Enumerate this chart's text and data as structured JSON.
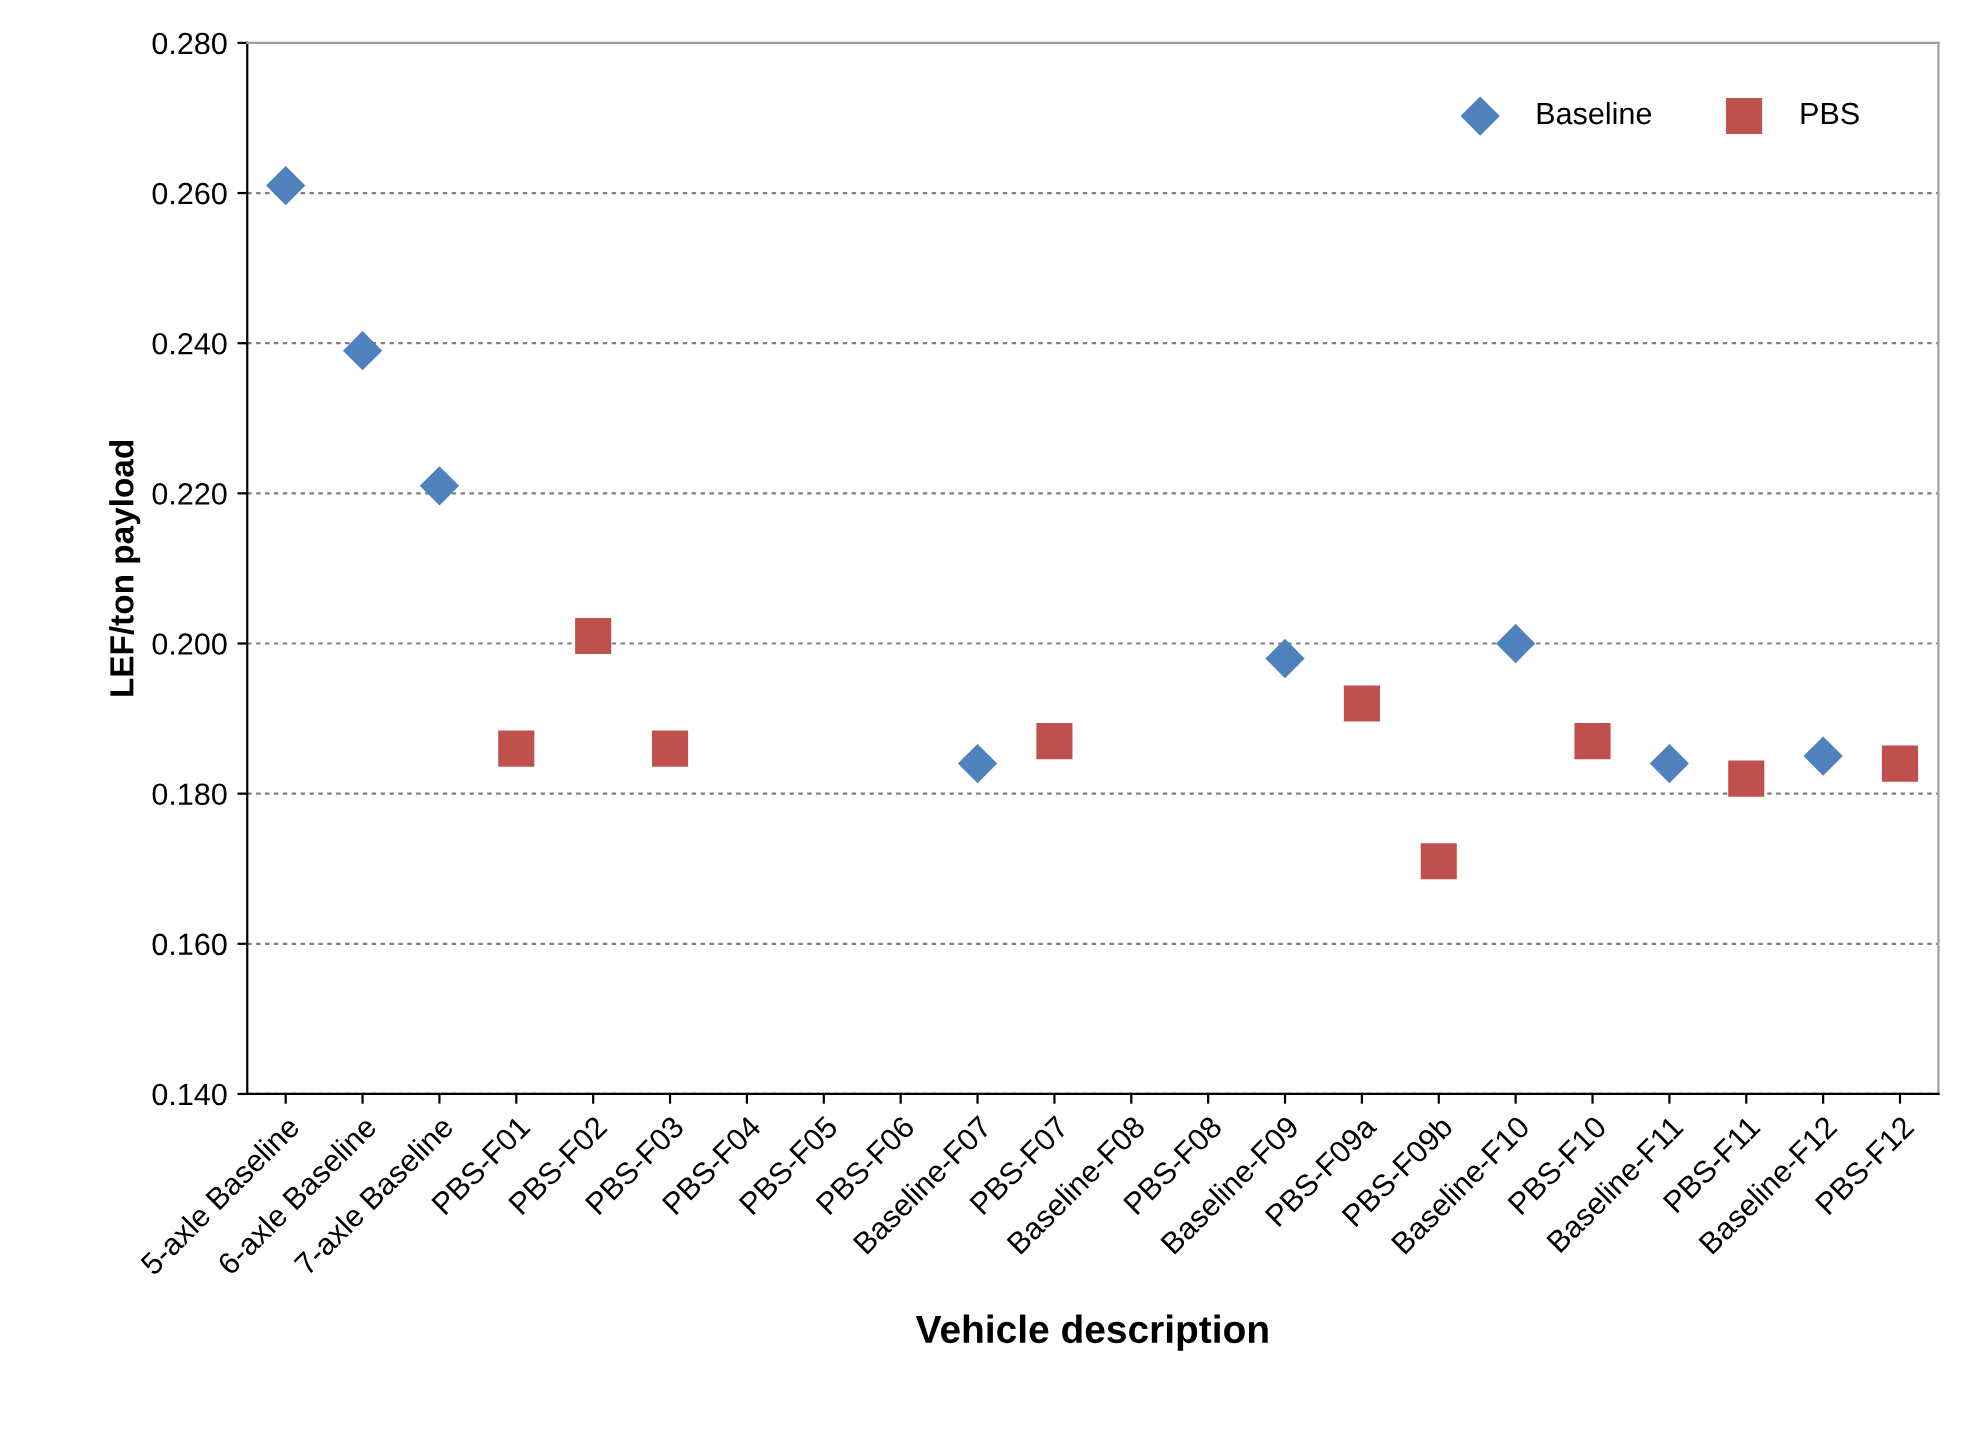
{
  "chart_data": {
    "type": "scatter",
    "xlabel": "Vehicle description",
    "ylabel": "LEF/ton payload",
    "categories": [
      "5-axle Baseline",
      "6-axle Baseline",
      "7-axle Baseline",
      "PBS-F01",
      "PBS-F02",
      "PBS-F03",
      "PBS-F04",
      "PBS-F05",
      "PBS-F06",
      "Baseline-F07",
      "PBS-F07",
      "Baseline-F08",
      "PBS-F08",
      "Baseline-F09",
      "PBS-F09a",
      "PBS-F09b",
      "Baseline-F10",
      "PBS-F10",
      "Baseline-F11",
      "PBS-F11",
      "Baseline-F12",
      "PBS-F12"
    ],
    "series": [
      {
        "name": "Baseline",
        "color": "#4f81bd",
        "marker": "diamond",
        "values": [
          0.261,
          0.239,
          0.221,
          null,
          null,
          null,
          null,
          null,
          null,
          0.184,
          null,
          null,
          null,
          0.198,
          null,
          null,
          0.2,
          null,
          0.184,
          null,
          0.185,
          null
        ]
      },
      {
        "name": "PBS",
        "color": "#c0504d",
        "marker": "square",
        "values": [
          null,
          null,
          null,
          0.186,
          0.201,
          0.186,
          null,
          null,
          null,
          null,
          0.187,
          null,
          null,
          null,
          0.192,
          0.171,
          null,
          0.187,
          null,
          0.182,
          null,
          0.184
        ]
      }
    ],
    "ylim": [
      0.14,
      0.28
    ],
    "yticks": [
      {
        "value": 0.14,
        "label": "0.140"
      },
      {
        "value": 0.16,
        "label": "0.160"
      },
      {
        "value": 0.18,
        "label": "0.180"
      },
      {
        "value": 0.2,
        "label": "0.200"
      },
      {
        "value": 0.22,
        "label": "0.220"
      },
      {
        "value": 0.24,
        "label": "0.240"
      },
      {
        "value": 0.26,
        "label": "0.260"
      },
      {
        "value": 0.28,
        "label": "0.280"
      }
    ],
    "grid": "y",
    "legend": "top right"
  }
}
